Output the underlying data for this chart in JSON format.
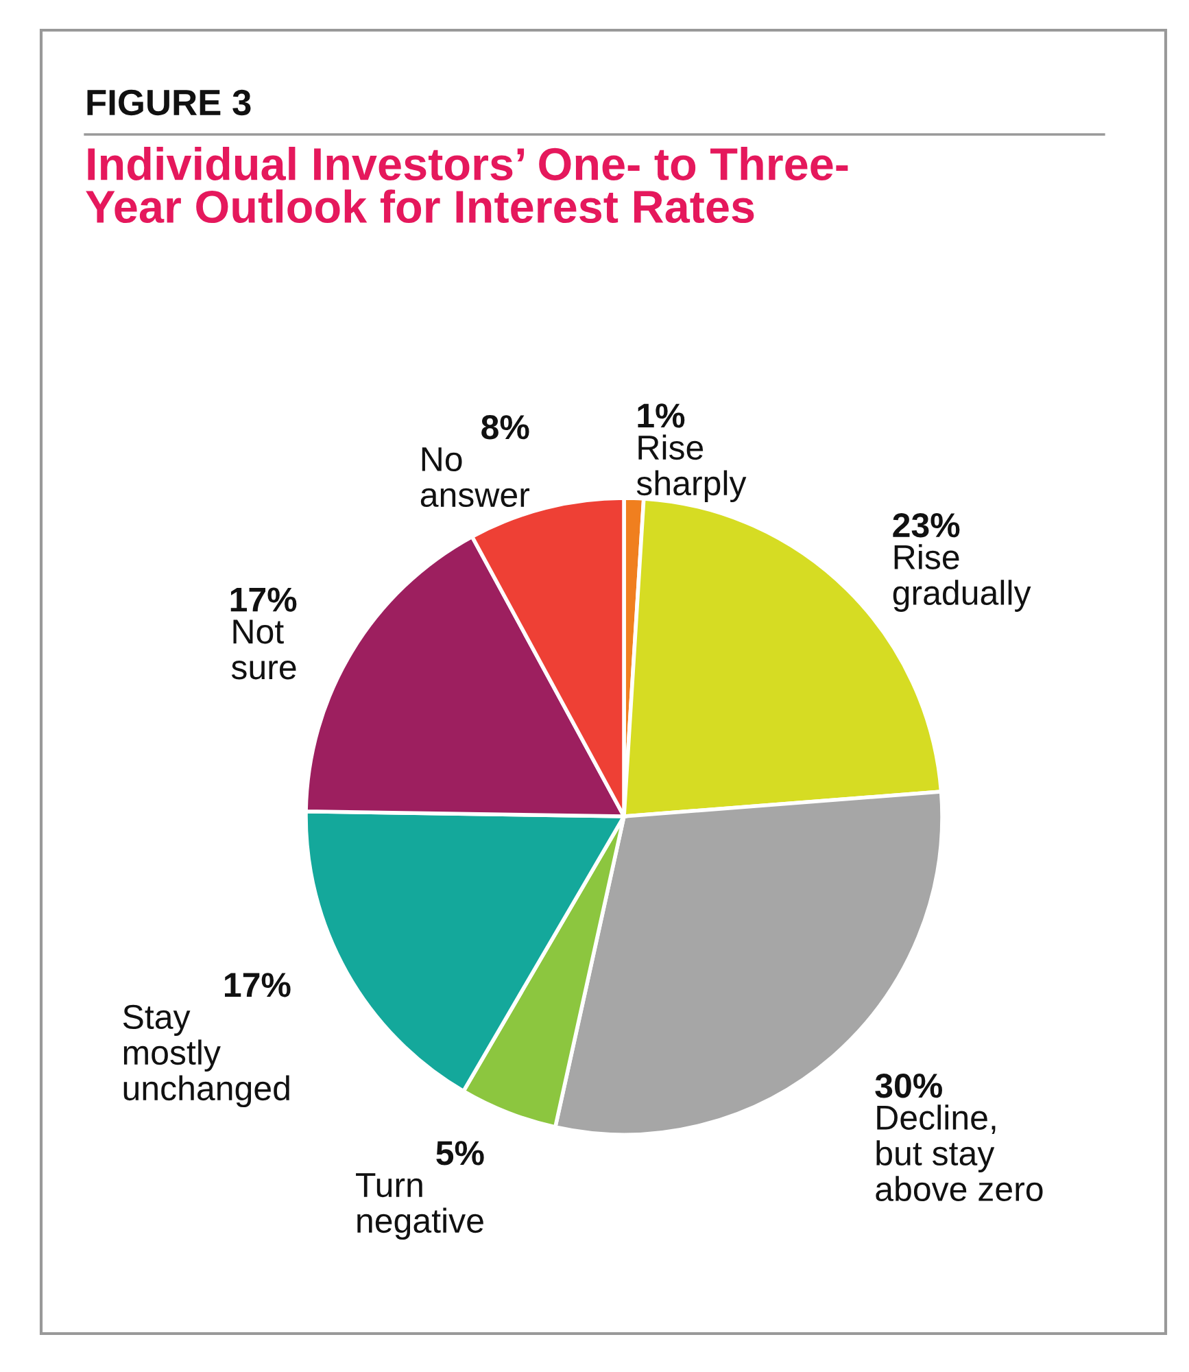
{
  "chart_data": {
    "type": "pie",
    "title": "Individual Investors’ One- to Three-\nYear Outlook for Interest Rates",
    "annotations": [
      "FIGURE 3"
    ],
    "categories": [
      "Rise\nsharply",
      "Rise\ngradually",
      "Decline,\nbut stay\nabove zero",
      "Turn\nnegative",
      "Stay\nmostly\nunchanged",
      "Not\nsure",
      "No\nanswer"
    ],
    "values": [
      1,
      23,
      30,
      5,
      17,
      17,
      8
    ],
    "colors": [
      "#f07f1f",
      "#d6dc23",
      "#a6a6a6",
      "#8cc63f",
      "#14a89b",
      "#9d1f5f",
      "#ee4035"
    ],
    "value_labels": [
      "1%",
      "23%",
      "30%",
      "5%",
      "17%",
      "17%",
      "8%"
    ]
  }
}
